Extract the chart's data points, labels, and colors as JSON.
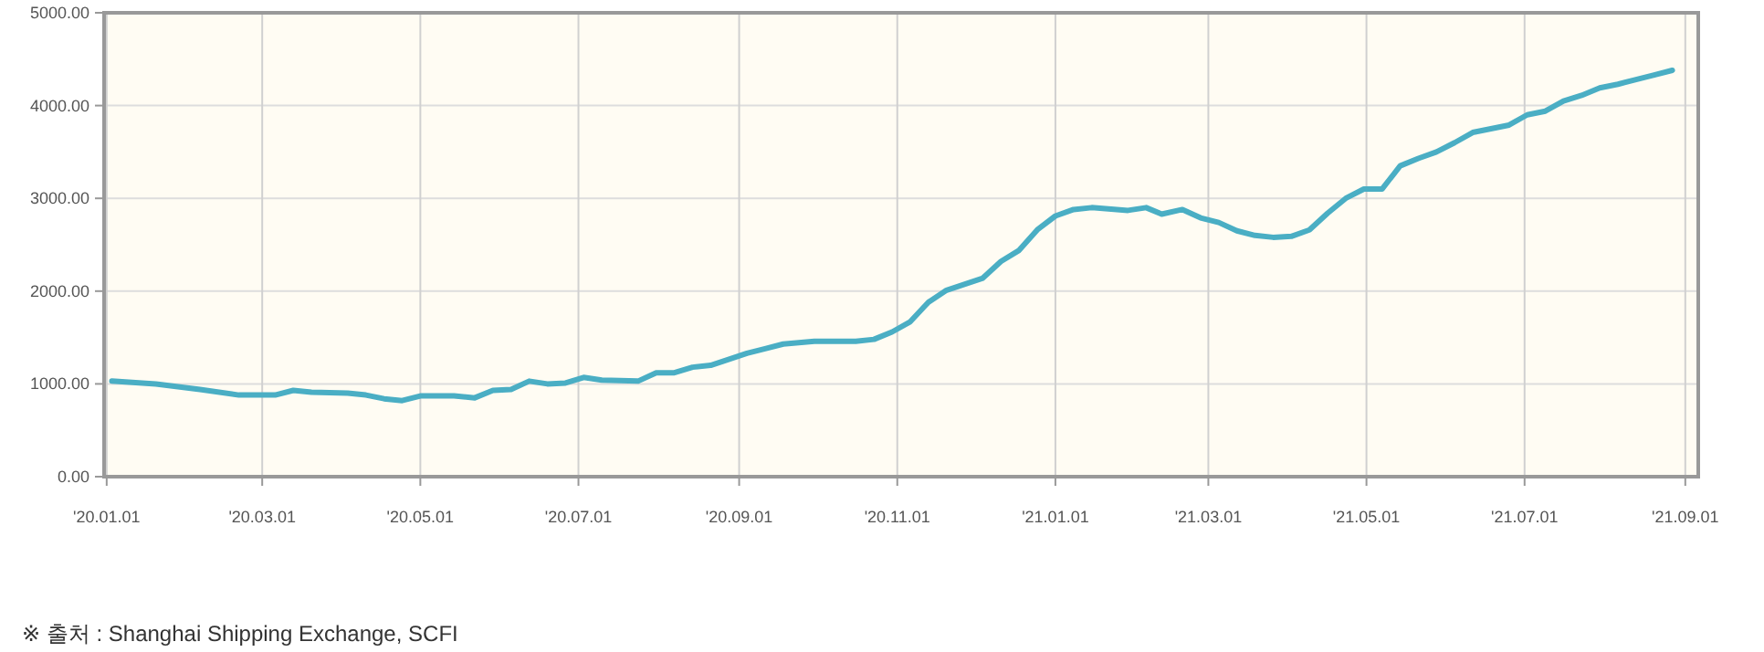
{
  "chart_data": {
    "type": "line",
    "x": [
      "2020-01-03",
      "2020-01-20",
      "2020-02-06",
      "2020-02-21",
      "2020-03-06",
      "2020-03-13",
      "2020-03-20",
      "2020-04-03",
      "2020-04-10",
      "2020-04-17",
      "2020-04-24",
      "2020-05-01",
      "2020-05-14",
      "2020-05-22",
      "2020-05-29",
      "2020-06-05",
      "2020-06-12",
      "2020-06-19",
      "2020-06-26",
      "2020-07-03",
      "2020-07-10",
      "2020-07-24",
      "2020-07-31",
      "2020-08-07",
      "2020-08-14",
      "2020-08-21",
      "2020-09-04",
      "2020-09-11",
      "2020-09-18",
      "2020-09-30",
      "2020-10-16",
      "2020-10-23",
      "2020-10-30",
      "2020-11-06",
      "2020-11-13",
      "2020-11-20",
      "2020-12-04",
      "2020-12-11",
      "2020-12-18",
      "2020-12-25",
      "2021-01-01",
      "2021-01-08",
      "2021-01-15",
      "2021-01-29",
      "2021-02-05",
      "2021-02-11",
      "2021-02-19",
      "2021-02-26",
      "2021-03-05",
      "2021-03-12",
      "2021-03-19",
      "2021-03-26",
      "2021-04-02",
      "2021-04-09",
      "2021-04-16",
      "2021-04-23",
      "2021-04-30",
      "2021-05-07",
      "2021-05-14",
      "2021-05-21",
      "2021-05-28",
      "2021-06-04",
      "2021-06-11",
      "2021-06-18",
      "2021-06-25",
      "2021-07-02",
      "2021-07-09",
      "2021-07-16",
      "2021-07-23",
      "2021-07-30",
      "2021-08-06",
      "2021-08-13",
      "2021-08-20",
      "2021-08-27"
    ],
    "series": [
      {
        "color": "#4aaec4",
        "values": [
          1030,
          1000,
          940,
          880,
          880,
          930,
          910,
          900,
          880,
          840,
          820,
          870,
          870,
          850,
          930,
          940,
          1030,
          1000,
          1010,
          1070,
          1040,
          1030,
          1120,
          1120,
          1180,
          1200,
          1330,
          1380,
          1430,
          1460,
          1460,
          1480,
          1560,
          1670,
          1880,
          2010,
          2140,
          2320,
          2440,
          2660,
          2810,
          2880,
          2900,
          2870,
          2900,
          2830,
          2880,
          2790,
          2740,
          2650,
          2600,
          2580,
          2590,
          2660,
          2840,
          3000,
          3100,
          3100,
          3350,
          3430,
          3500,
          3600,
          3710,
          3750,
          3790,
          3900,
          3940,
          4050,
          4110,
          4190,
          4230,
          4280,
          4330,
          4380
        ]
      }
    ],
    "xlim": [
      "2019-12-31",
      "2021-09-06"
    ],
    "xticks": [
      {
        "value": "2020-01-01",
        "label": "'20.01.01"
      },
      {
        "value": "2020-03-01",
        "label": "'20.03.01"
      },
      {
        "value": "2020-05-01",
        "label": "'20.05.01"
      },
      {
        "value": "2020-07-01",
        "label": "'20.07.01"
      },
      {
        "value": "2020-09-01",
        "label": "'20.09.01"
      },
      {
        "value": "2020-11-01",
        "label": "'20.11.01"
      },
      {
        "value": "2021-01-01",
        "label": "'21.01.01"
      },
      {
        "value": "2021-03-01",
        "label": "'21.03.01"
      },
      {
        "value": "2021-05-01",
        "label": "'21.05.01"
      },
      {
        "value": "2021-07-01",
        "label": "'21.07.01"
      },
      {
        "value": "2021-09-01",
        "label": "'21.09.01"
      }
    ],
    "ylim": [
      0,
      5000
    ],
    "yticks": [
      {
        "value": 0,
        "label": "0.00"
      },
      {
        "value": 1000,
        "label": "1000.00"
      },
      {
        "value": 2000,
        "label": "2000.00"
      },
      {
        "value": 3000,
        "label": "3000.00"
      },
      {
        "value": 4000,
        "label": "4000.00"
      },
      {
        "value": 5000,
        "label": "5000.00"
      }
    ],
    "grid": true,
    "marker": "none",
    "line_style": "solid",
    "annotations": [
      "※ 출처 : Shanghai Shipping Exchange, SCFI"
    ]
  }
}
